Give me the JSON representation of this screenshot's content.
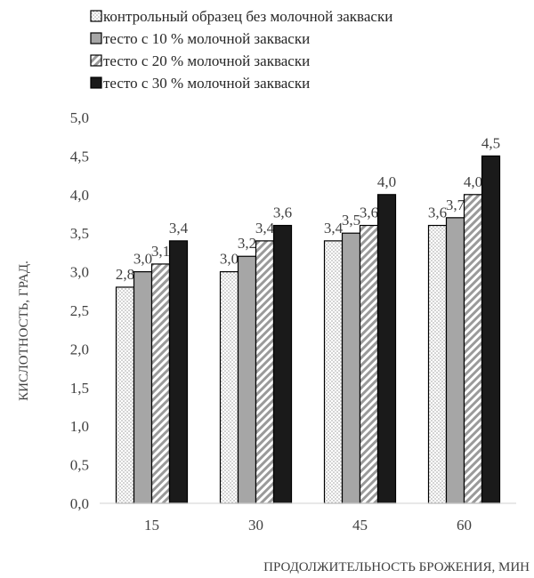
{
  "chart_data": {
    "type": "bar",
    "categories": [
      "15",
      "30",
      "45",
      "60"
    ],
    "series": [
      {
        "name": "контрольный образец без молочной закваски",
        "values": [
          2.8,
          3.0,
          3.4,
          3.6
        ],
        "labels": [
          "2,8",
          "3,0",
          "3,4",
          "3,6"
        ],
        "pattern": "dots"
      },
      {
        "name": "тесто с 10 % молочной закваски",
        "values": [
          3.0,
          3.2,
          3.5,
          3.7
        ],
        "labels": [
          "3,0",
          "3,2",
          "3,5",
          "3,7"
        ],
        "pattern": "gray"
      },
      {
        "name": "тесто с 20 % молочной закваски",
        "values": [
          3.1,
          3.4,
          3.6,
          4.0
        ],
        "labels": [
          "3,1",
          "3,4",
          "3,6",
          "4,0"
        ],
        "pattern": "diagonal"
      },
      {
        "name": "тесто с 30 % молочной закваски",
        "values": [
          3.4,
          3.6,
          4.0,
          4.5
        ],
        "labels": [
          "3,4",
          "3,6",
          "4,0",
          "4,5"
        ],
        "pattern": "black"
      }
    ],
    "yticks": [
      "0,0",
      "0,5",
      "1,0",
      "1,5",
      "2,0",
      "2,5",
      "3,0",
      "3,5",
      "4,0",
      "4,5",
      "5,0"
    ],
    "ylim": [
      0,
      5
    ],
    "ylabel": "КИСЛОТНОСТЬ, ГРАД.",
    "xlabel": "ПРОДОЛЖИТЕЛЬНОСТЬ БРОЖЕНИЯ, МИН",
    "legend_position": "top-left",
    "grid": false,
    "colors": {
      "gray": "#a6a6a6",
      "black": "#1a1a1a",
      "border": "#000000",
      "axis": "#d9d9d9",
      "dot": "#9a9a9a"
    }
  }
}
